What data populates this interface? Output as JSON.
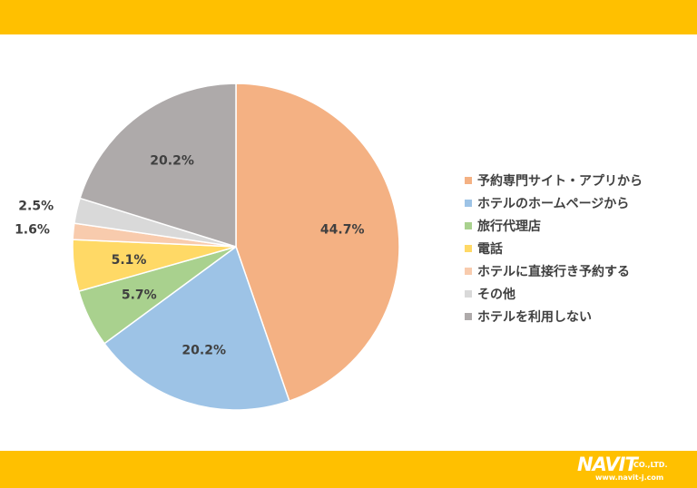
{
  "chart_data": {
    "type": "pie",
    "title": "",
    "slices": [
      {
        "label": "予約専門サイト・アプリから",
        "value": 44.7,
        "value_label": "44.7%",
        "color": "#f4b183"
      },
      {
        "label": "ホテルのホームページから",
        "value": 20.2,
        "value_label": "20.2%",
        "color": "#9dc3e6"
      },
      {
        "label": "旅行代理店",
        "value": 5.7,
        "value_label": "5.7%",
        "color": "#a9d18e"
      },
      {
        "label": "電話",
        "value": 5.1,
        "value_label": "5.1%",
        "color": "#ffd966"
      },
      {
        "label": "ホテルに直接行き予約する",
        "value": 1.6,
        "value_label": "1.6%",
        "color": "#f8cbad"
      },
      {
        "label": "その他",
        "value": 2.5,
        "value_label": "2.5%",
        "color": "#d9d9d9"
      },
      {
        "label": "ホテルを利用しない",
        "value": 20.2,
        "value_label": "20.2%",
        "color": "#aeaaaa"
      }
    ],
    "start_angle": "12 o'clock",
    "direction": "clockwise",
    "legend_position": "right"
  },
  "branding": {
    "logo_text": "NAVIT",
    "logo_suffix": "CO.,LTD.",
    "url": "www.navit-j.com",
    "band_color": "#ffc000"
  }
}
